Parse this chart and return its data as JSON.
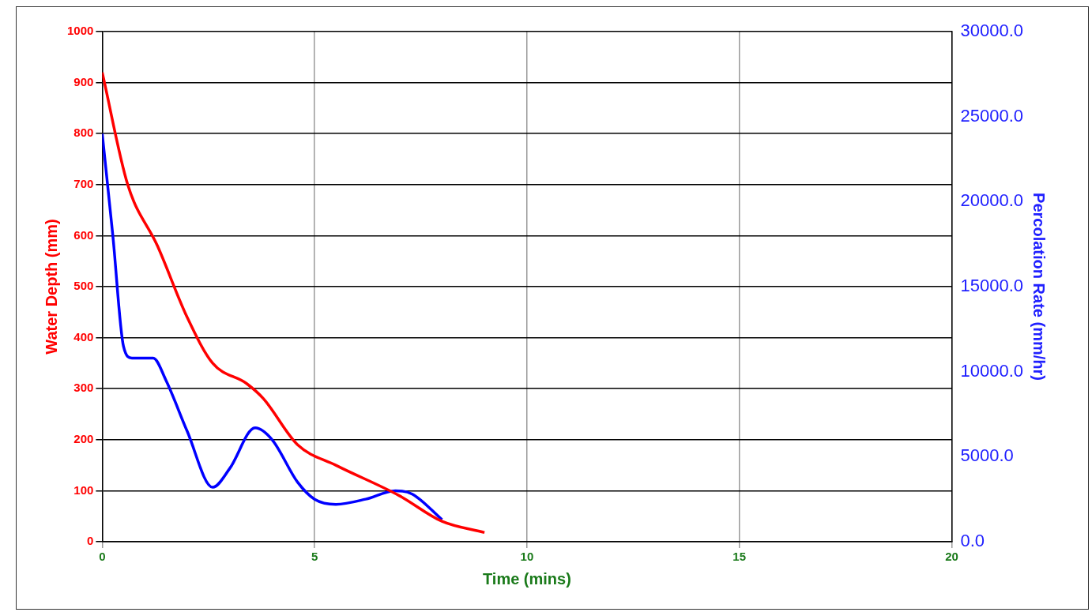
{
  "chart_data": {
    "type": "line",
    "xlabel": "Time (mins)",
    "ylabel": "Water Depth (mm)",
    "y2label": "Percolation Rate (mm/hr)",
    "xlim": [
      0,
      20
    ],
    "xticks": [
      0,
      5,
      10,
      15,
      20
    ],
    "ylim": [
      0,
      1000
    ],
    "yticks": [
      0,
      100,
      200,
      300,
      400,
      500,
      600,
      700,
      800,
      900,
      1000
    ],
    "y2lim": [
      0,
      30000
    ],
    "y2ticks": [
      {
        "value": 0,
        "label": "0.0"
      },
      {
        "value": 5000,
        "label": "5000.0"
      },
      {
        "value": 10000,
        "label": "10000.0"
      },
      {
        "value": 15000,
        "label": "15000.0"
      },
      {
        "value": 20000,
        "label": "20000.0"
      },
      {
        "value": 25000,
        "label": "25000.0"
      },
      {
        "value": 30000,
        "label": "30000.0"
      }
    ],
    "grid": true,
    "legend": false,
    "marker": "none",
    "line_style": "solid",
    "series": [
      {
        "color": "#ff0000",
        "x": [
          0,
          0.6,
          1.3,
          2,
          2.6,
          3.4,
          3.8,
          4.6,
          5.5,
          7,
          8,
          9
        ],
        "values": [
          920,
          700,
          580,
          440,
          350,
          310,
          280,
          190,
          150,
          90,
          40,
          18
        ]
      },
      {
        "color": "#0000ff",
        "axis": "y2",
        "x": [
          0,
          0.25,
          0.5,
          0.7,
          1.2,
          1.5,
          2,
          2.6,
          3,
          3.6,
          4,
          4.6,
          5,
          5.5,
          6.2,
          6.9,
          7.3,
          8
        ],
        "values": [
          24000,
          18000,
          11500,
          10800,
          10800,
          9500,
          6500,
          3200,
          4300,
          6700,
          6000,
          3500,
          2500,
          2200,
          2500,
          3000,
          2800,
          1300
        ]
      }
    ]
  }
}
